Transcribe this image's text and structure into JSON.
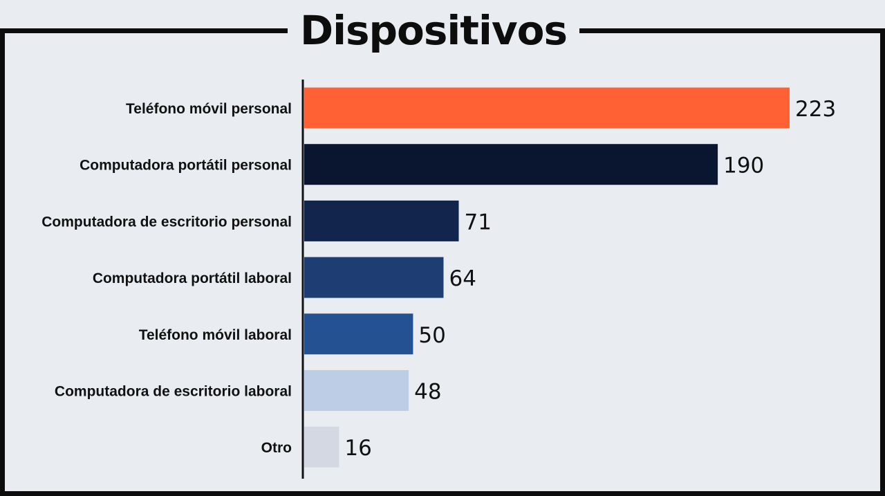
{
  "chart_data": {
    "type": "bar",
    "orientation": "horizontal",
    "title": "Dispositivos",
    "categories": [
      "Teléfono móvil personal",
      "Computadora portátil personal",
      "Computadora de escritorio personal",
      "Computadora portátil laboral",
      "Teléfono móvil laboral",
      "Computadora de escritorio laboral",
      "Otro"
    ],
    "values": [
      223,
      190,
      71,
      64,
      50,
      48,
      16
    ],
    "value_labels": [
      "223",
      "190",
      "71",
      "64",
      "50",
      "48",
      "16"
    ],
    "colors": [
      "#ff6135",
      "#0a1530",
      "#12264d",
      "#1e3d73",
      "#245192",
      "#bdcde6",
      "#d3d8e2"
    ],
    "xlabel": "",
    "ylabel": "",
    "xlim": [
      0,
      223
    ],
    "grid": false,
    "legend": "none"
  }
}
